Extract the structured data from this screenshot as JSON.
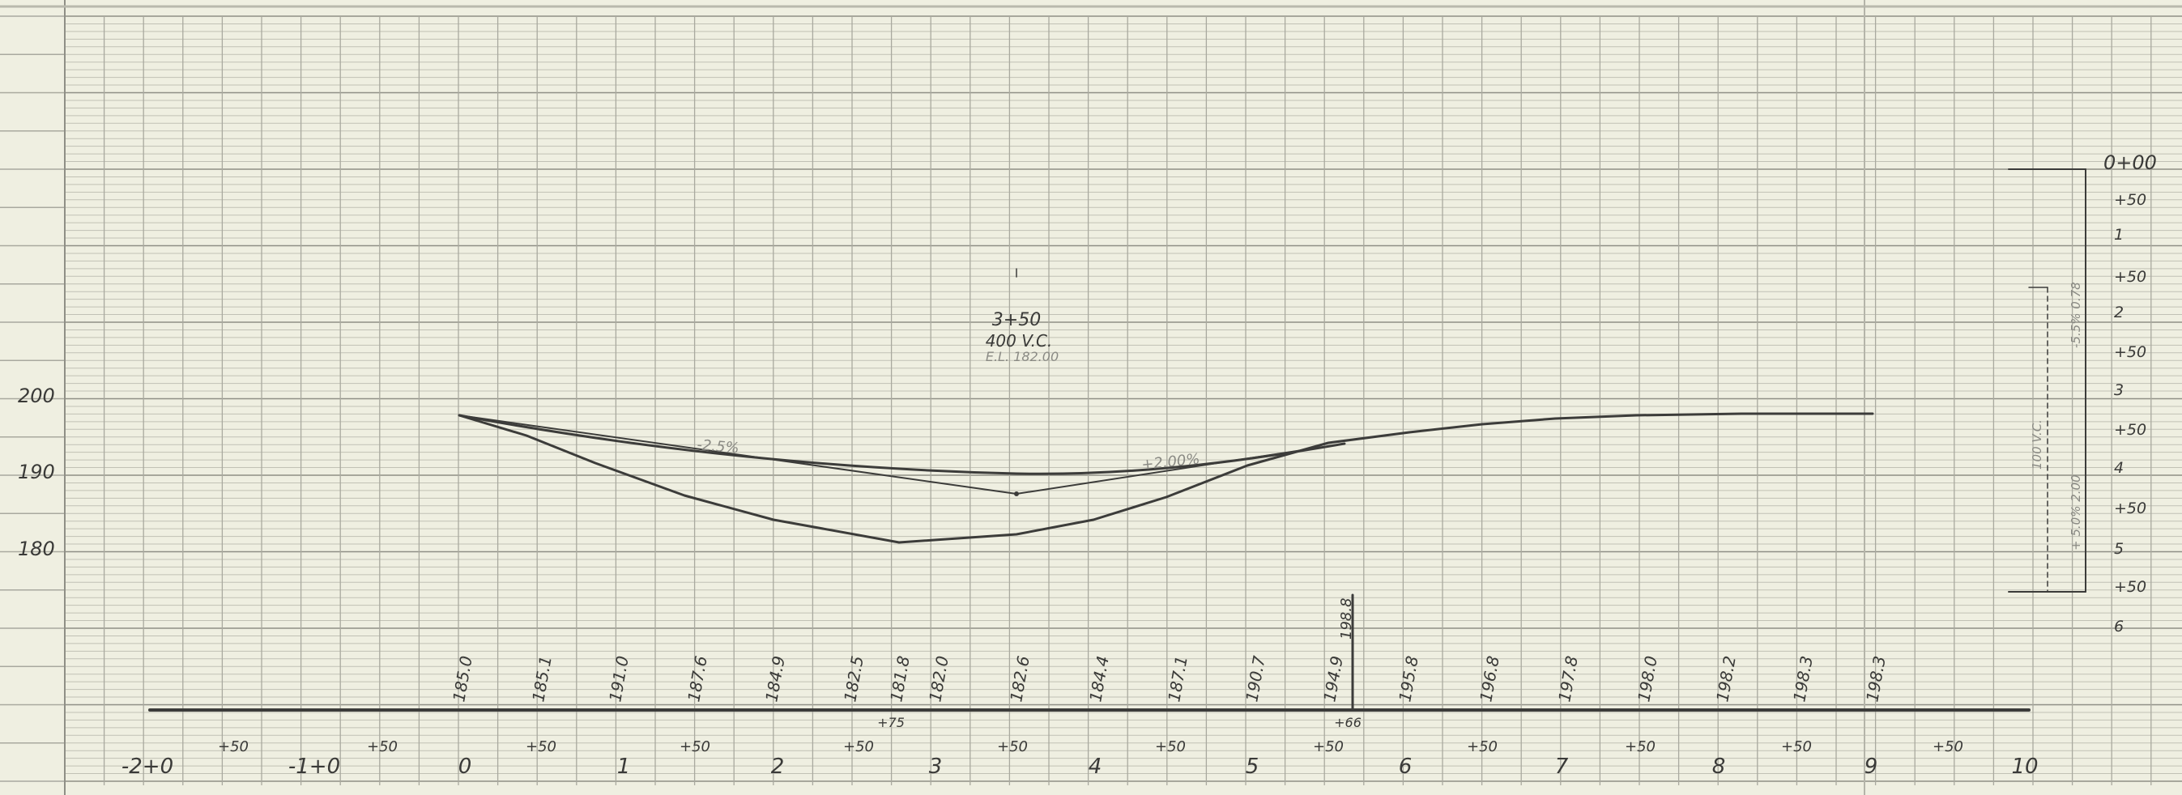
{
  "elevation_labels": [
    "200",
    "190",
    "180"
  ],
  "station_numbers": [
    "-2+0",
    "-1+0",
    "0",
    "1",
    "2",
    "3",
    "4",
    "5",
    "6",
    "7",
    "8",
    "9",
    "10"
  ],
  "half_station_label": "+50",
  "ground_elevations": [
    "185.0",
    "185.1",
    "191.0",
    "187.6",
    "184.9",
    "182.5",
    "181.8",
    "182.0",
    "182.6",
    "184.4",
    "187.1",
    "190.7",
    "194.9",
    "195.8",
    "196.8",
    "197.8",
    "198.0",
    "198.2",
    "198.3",
    "198.3"
  ],
  "marker_elevation": "198.8",
  "sub_labels": {
    "left": "+75",
    "right": "+66"
  },
  "curve_note": {
    "station": "3+50",
    "vc_length": "400 V.C.",
    "elevation": "E.L. 182.00"
  },
  "grades": {
    "left": "-2.5%",
    "right": "+2.00%"
  },
  "right_scale": {
    "top_label": "0+00",
    "labels": [
      "+50",
      "1",
      "+50",
      "2",
      "+50",
      "3",
      "+50",
      "4",
      "+50",
      "5",
      "+50",
      "6"
    ]
  },
  "right_annotations": [
    "-5.5% 0.78",
    "100 V.C.",
    "+ 5.0% 2.00"
  ]
}
